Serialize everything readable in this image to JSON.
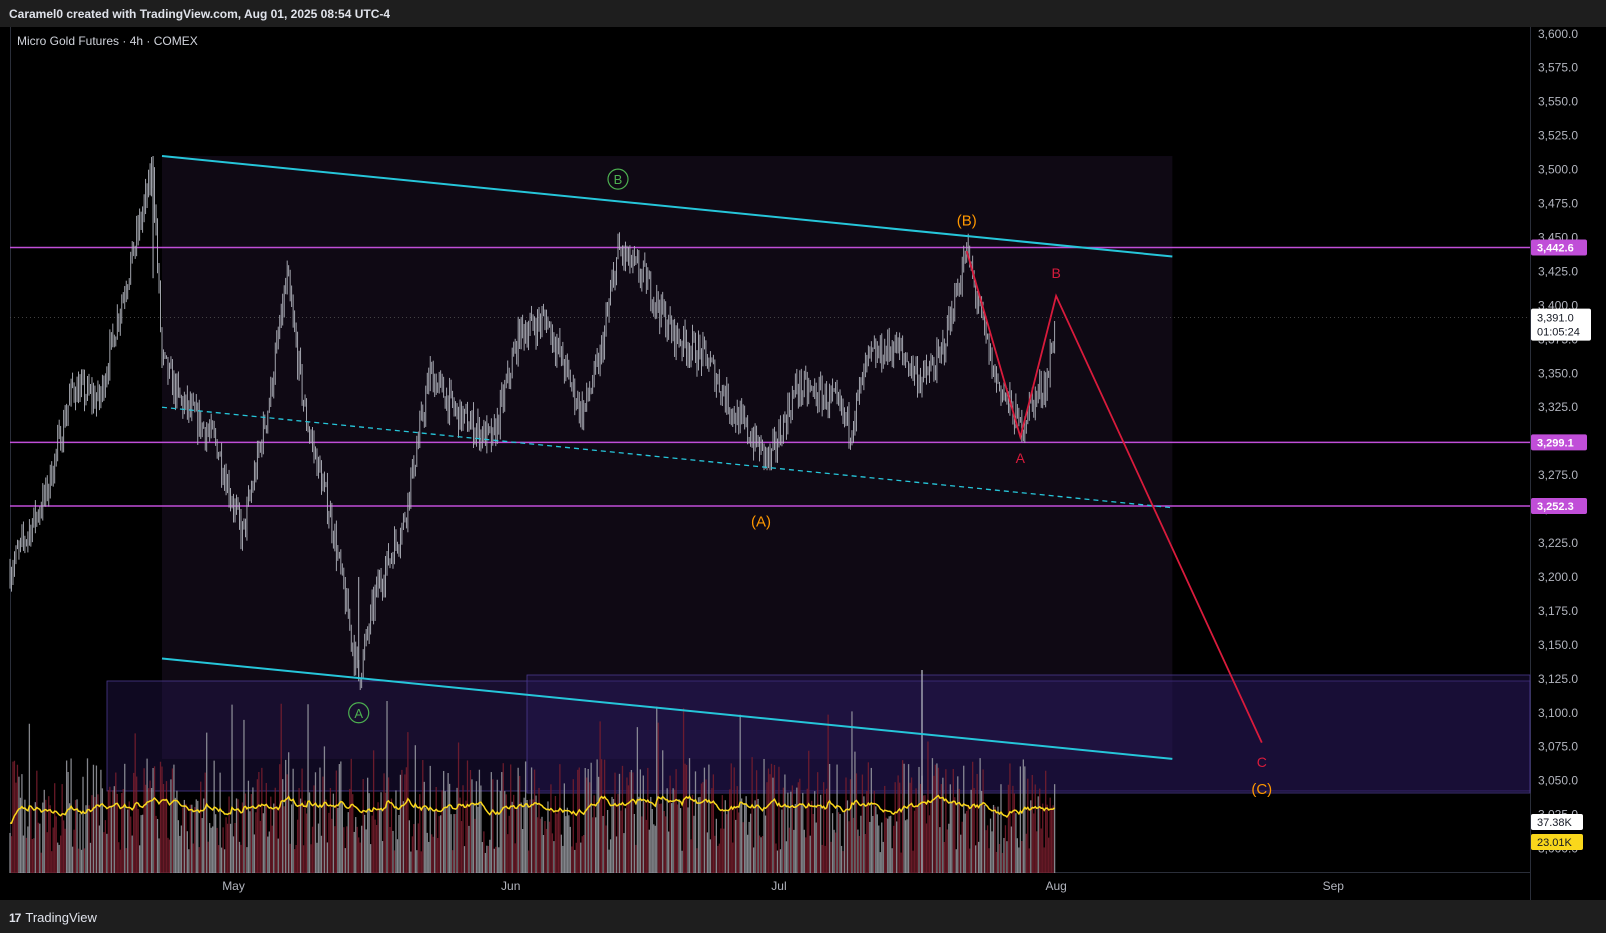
{
  "header": {
    "author": "Caramel0",
    "text": "Caramel0 created with TradingView.com, Aug 01, 2025 08:54 UTC-4"
  },
  "symbol": {
    "text": "Micro Gold Futures · 4h · COMEX"
  },
  "footer": {
    "brand_mark": "17",
    "brand": "TradingView"
  },
  "colors": {
    "channel": "#26c6da",
    "level": "#c04ed8",
    "wave_red": "#d81b3c",
    "wave_orange": "#ff9800",
    "wave_green": "#4caf50",
    "volume_ma": "#f9d71c",
    "candle": "#b2b5be",
    "background": "#000000"
  },
  "chart_data": {
    "type": "line",
    "title": "Micro Gold Futures · 4h · COMEX",
    "x_ticks": [
      "May",
      "Jun",
      "Jul",
      "Aug",
      "Sep"
    ],
    "x_tick_dates": [
      "2025-05-01",
      "2025-06-01",
      "2025-07-01",
      "2025-08-01",
      "2025-09-01"
    ],
    "y_ticks": [
      "3,600.0",
      "3,575.0",
      "3,550.0",
      "3,525.0",
      "3,500.0",
      "3,475.0",
      "3,450.0",
      "3,425.0",
      "3,400.0",
      "3,375.0",
      "3,350.0",
      "3,325.0",
      "3,300.0",
      "3,275.0",
      "3,250.0",
      "3,225.0",
      "3,200.0",
      "3,175.0",
      "3,150.0",
      "3,125.0",
      "3,100.0",
      "3,075.0",
      "3,050.0",
      "3,025.0",
      "3,000.0"
    ],
    "ylim": [
      2982,
      3605
    ],
    "xlim": [
      "2025-04-06",
      "2025-09-23"
    ],
    "price_path": [
      {
        "date": "2025-04-06",
        "price": 3205
      },
      {
        "date": "2025-04-10",
        "price": 3260
      },
      {
        "date": "2025-04-13",
        "price": 3340
      },
      {
        "date": "2025-04-16",
        "price": 3330
      },
      {
        "date": "2025-04-18",
        "price": 3390
      },
      {
        "date": "2025-04-22",
        "price": 3500
      },
      {
        "date": "2025-04-23",
        "price": 3360
      },
      {
        "date": "2025-04-25",
        "price": 3330
      },
      {
        "date": "2025-04-29",
        "price": 3300
      },
      {
        "date": "2025-05-02",
        "price": 3230
      },
      {
        "date": "2025-05-05",
        "price": 3330
      },
      {
        "date": "2025-05-07",
        "price": 3420
      },
      {
        "date": "2025-05-09",
        "price": 3320
      },
      {
        "date": "2025-05-12",
        "price": 3240
      },
      {
        "date": "2025-05-15",
        "price": 3125
      },
      {
        "date": "2025-05-17",
        "price": 3190
      },
      {
        "date": "2025-05-20",
        "price": 3240
      },
      {
        "date": "2025-05-23",
        "price": 3350
      },
      {
        "date": "2025-05-26",
        "price": 3320
      },
      {
        "date": "2025-05-30",
        "price": 3300
      },
      {
        "date": "2025-06-02",
        "price": 3380
      },
      {
        "date": "2025-06-05",
        "price": 3390
      },
      {
        "date": "2025-06-09",
        "price": 3320
      },
      {
        "date": "2025-06-11",
        "price": 3360
      },
      {
        "date": "2025-06-13",
        "price": 3440
      },
      {
        "date": "2025-06-16",
        "price": 3420
      },
      {
        "date": "2025-06-19",
        "price": 3380
      },
      {
        "date": "2025-06-23",
        "price": 3360
      },
      {
        "date": "2025-06-26",
        "price": 3320
      },
      {
        "date": "2025-06-30",
        "price": 3285
      },
      {
        "date": "2025-07-03",
        "price": 3340
      },
      {
        "date": "2025-07-07",
        "price": 3330
      },
      {
        "date": "2025-07-09",
        "price": 3310
      },
      {
        "date": "2025-07-11",
        "price": 3360
      },
      {
        "date": "2025-07-14",
        "price": 3370
      },
      {
        "date": "2025-07-17",
        "price": 3345
      },
      {
        "date": "2025-07-19",
        "price": 3360
      },
      {
        "date": "2025-07-22",
        "price": 3440
      },
      {
        "date": "2025-07-23",
        "price": 3410
      },
      {
        "date": "2025-07-25",
        "price": 3350
      },
      {
        "date": "2025-07-28",
        "price": 3310
      },
      {
        "date": "2025-07-29",
        "price": 3325
      },
      {
        "date": "2025-07-31",
        "price": 3345
      },
      {
        "date": "2025-08-01",
        "price": 3391
      }
    ],
    "price_range": {
      "high": 3510,
      "low": 3125
    },
    "horizontal_levels": [
      3442.6,
      3299.1,
      3252.3
    ],
    "level_labels": [
      "3,442.6",
      "3,299.1",
      "3,252.3"
    ],
    "last_price": {
      "value": "3,391.0",
      "countdown": "01:05:24"
    },
    "volume_labels": [
      "37.38K",
      "23.01K"
    ],
    "channel_upper": {
      "from": {
        "date": "2025-04-23",
        "price": 3510
      },
      "to": {
        "date": "2025-08-14",
        "price": 3436
      }
    },
    "channel_lower": {
      "from": {
        "date": "2025-04-23",
        "price": 3140
      },
      "to": {
        "date": "2025-08-14",
        "price": 3066
      }
    },
    "channel_mid": {
      "from": {
        "date": "2025-04-23",
        "price": 3325
      },
      "to": {
        "date": "2025-08-14",
        "price": 3251
      }
    },
    "wave_path": [
      {
        "date": "2025-07-22",
        "price": 3440
      },
      {
        "date": "2025-07-28",
        "price": 3303
      },
      {
        "date": "2025-08-01",
        "price": 3407
      },
      {
        "date": "2025-08-24",
        "price": 3078
      }
    ],
    "wave_labels": [
      {
        "text": "A",
        "date": "2025-05-15",
        "price": 3100,
        "style": "green-circle"
      },
      {
        "text": "B",
        "date": "2025-06-13",
        "price": 3493,
        "style": "green-circle"
      },
      {
        "text": "(A)",
        "date": "2025-06-29",
        "price": 3237,
        "style": "orange"
      },
      {
        "text": "(B)",
        "date": "2025-07-22",
        "price": 3459,
        "style": "orange"
      },
      {
        "text": "A",
        "date": "2025-07-28",
        "price": 3284,
        "style": "red"
      },
      {
        "text": "B",
        "date": "2025-08-01",
        "price": 3420,
        "style": "red"
      },
      {
        "text": "C",
        "date": "2025-08-24",
        "price": 3060,
        "style": "red"
      },
      {
        "text": "(C)",
        "date": "2025-08-24",
        "price": 3040,
        "style": "orange"
      }
    ],
    "grid": false,
    "legend": "none"
  }
}
